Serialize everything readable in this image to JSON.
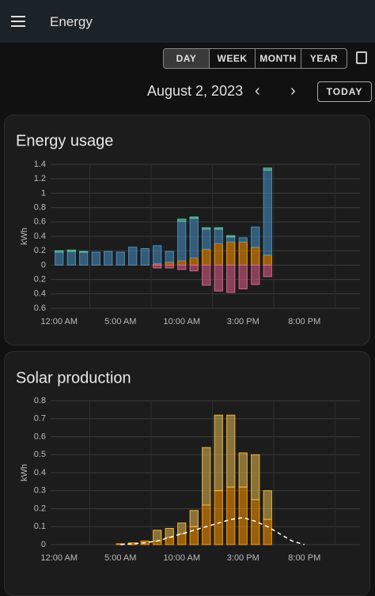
{
  "header": {
    "title": "Energy"
  },
  "period_buttons": [
    "DAY",
    "WEEK",
    "MONTH",
    "YEAR"
  ],
  "date": "August 2, 2023",
  "today_button": "TODAY",
  "chart_data": [
    {
      "type": "bar",
      "stacked": true,
      "title": "Energy usage",
      "y_label": "kWh",
      "categories": [
        "12:00 AM",
        null,
        null,
        null,
        null,
        "5:00 AM",
        null,
        null,
        null,
        null,
        "10:00 AM",
        null,
        null,
        null,
        null,
        "3:00 PM",
        null,
        null,
        null,
        null,
        "8:00 PM",
        null,
        null,
        null
      ],
      "ylim": [
        -0.6,
        1.4
      ],
      "yticks": [
        {
          "value": -0.6,
          "label": "0.6"
        },
        {
          "value": -0.4,
          "label": "0.4"
        },
        {
          "value": -0.2,
          "label": "0.2"
        },
        0,
        0.2,
        0.4,
        0.6,
        0.8,
        1,
        1.2,
        1.4
      ],
      "grid": true,
      "series": [
        {
          "color": "#ff9800",
          "values": [
            0,
            0,
            0,
            0,
            0,
            0,
            0,
            0,
            0.02,
            0.04,
            0.06,
            0.1,
            0.22,
            0.3,
            0.32,
            0.32,
            0.25,
            0.14,
            null,
            null,
            null,
            null,
            null,
            null
          ]
        },
        {
          "color": "#488fc2",
          "values": [
            0.18,
            0.19,
            0.18,
            0.18,
            0.19,
            0.18,
            0.25,
            0.23,
            0.25,
            0.15,
            0.55,
            0.55,
            0.28,
            0.2,
            0.07,
            0.06,
            0.28,
            1.18,
            null,
            null,
            null,
            null,
            null,
            null
          ]
        },
        {
          "color": "#5ec8a0",
          "values": [
            0.02,
            0.02,
            0.01,
            0,
            0,
            0,
            0,
            0,
            0,
            0,
            0.03,
            0.02,
            0.02,
            0.02,
            0.02,
            0,
            0,
            0.03,
            null,
            null,
            null,
            null,
            null,
            null
          ]
        },
        {
          "color": "#e0608a",
          "values": [
            0,
            0,
            0,
            0,
            0,
            0,
            0,
            0,
            -0.04,
            -0.04,
            -0.06,
            -0.08,
            -0.28,
            -0.36,
            -0.38,
            -0.33,
            -0.27,
            -0.16,
            null,
            null,
            null,
            null,
            null,
            null
          ]
        }
      ]
    },
    {
      "type": "bar",
      "stacked": true,
      "title": "Solar production",
      "y_label": "kWh",
      "categories": [
        "12:00 AM",
        null,
        null,
        null,
        null,
        "5:00 AM",
        null,
        null,
        null,
        null,
        "10:00 AM",
        null,
        null,
        null,
        null,
        "3:00 PM",
        null,
        null,
        null,
        null,
        "8:00 PM",
        null,
        null,
        null
      ],
      "ylim": [
        0,
        0.8
      ],
      "yticks": [
        0,
        0.1,
        0.2,
        0.3,
        0.4,
        0.5,
        0.6,
        0.7,
        0.8
      ],
      "grid": true,
      "series": [
        {
          "color": "#ff9800",
          "values": [
            null,
            null,
            null,
            null,
            null,
            0.005,
            0.01,
            0.02,
            0.02,
            0.04,
            0.06,
            0.1,
            0.22,
            0.3,
            0.32,
            0.32,
            0.25,
            0.14,
            null,
            null,
            null,
            null,
            null,
            null
          ]
        },
        {
          "color": "#e8b84a",
          "values": [
            null,
            null,
            null,
            null,
            null,
            0,
            0,
            0,
            0.06,
            0.05,
            0.06,
            0.09,
            0.32,
            0.42,
            0.4,
            0.19,
            0.25,
            0.16,
            null,
            null,
            null,
            null,
            null,
            null
          ]
        },
        {
          "color": "#ffffff",
          "type": "line",
          "dashed": true,
          "values": [
            null,
            null,
            null,
            null,
            null,
            0,
            0.005,
            0.01,
            0.02,
            0.04,
            0.06,
            0.08,
            0.1,
            0.12,
            0.14,
            0.15,
            0.13,
            0.1,
            0.06,
            0.02,
            0,
            null,
            null,
            null
          ]
        }
      ]
    }
  ]
}
